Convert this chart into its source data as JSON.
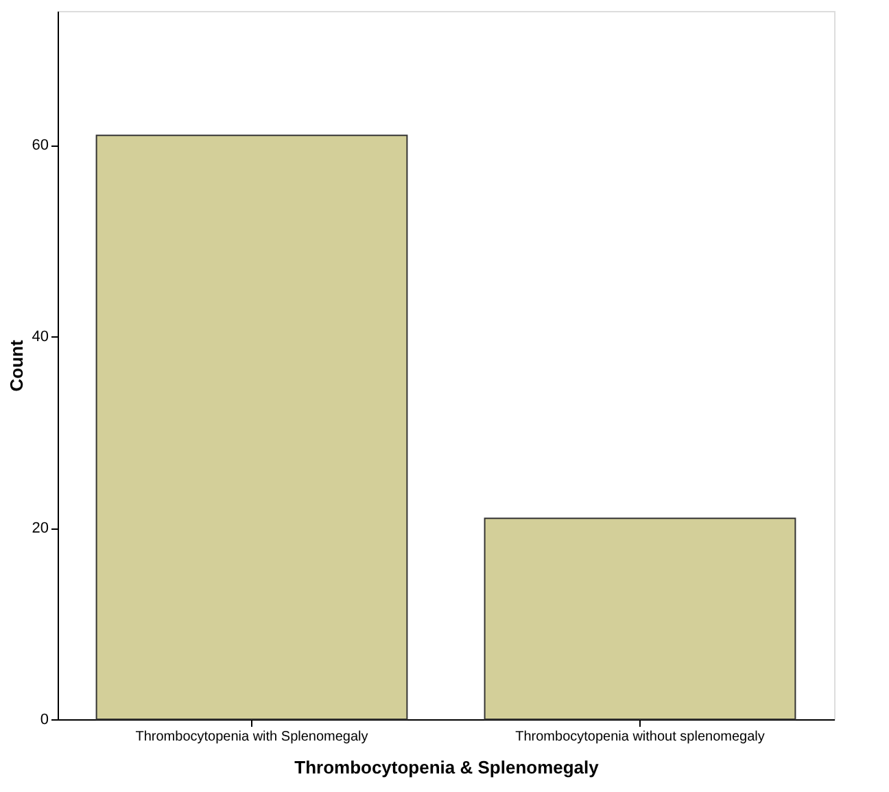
{
  "chart_data": {
    "type": "bar",
    "xlabel": "Thrombocytopenia & Splenomegaly",
    "ylabel": "Count",
    "categories": [
      "Thrombocytopenia with Splenomegaly",
      "Thrombocytopenia without splenomegaly"
    ],
    "values": [
      61,
      21
    ],
    "color": "#d3cf99",
    "ylim": [
      0,
      74
    ],
    "yticks": [
      0,
      20,
      40,
      60
    ],
    "grid": false
  }
}
